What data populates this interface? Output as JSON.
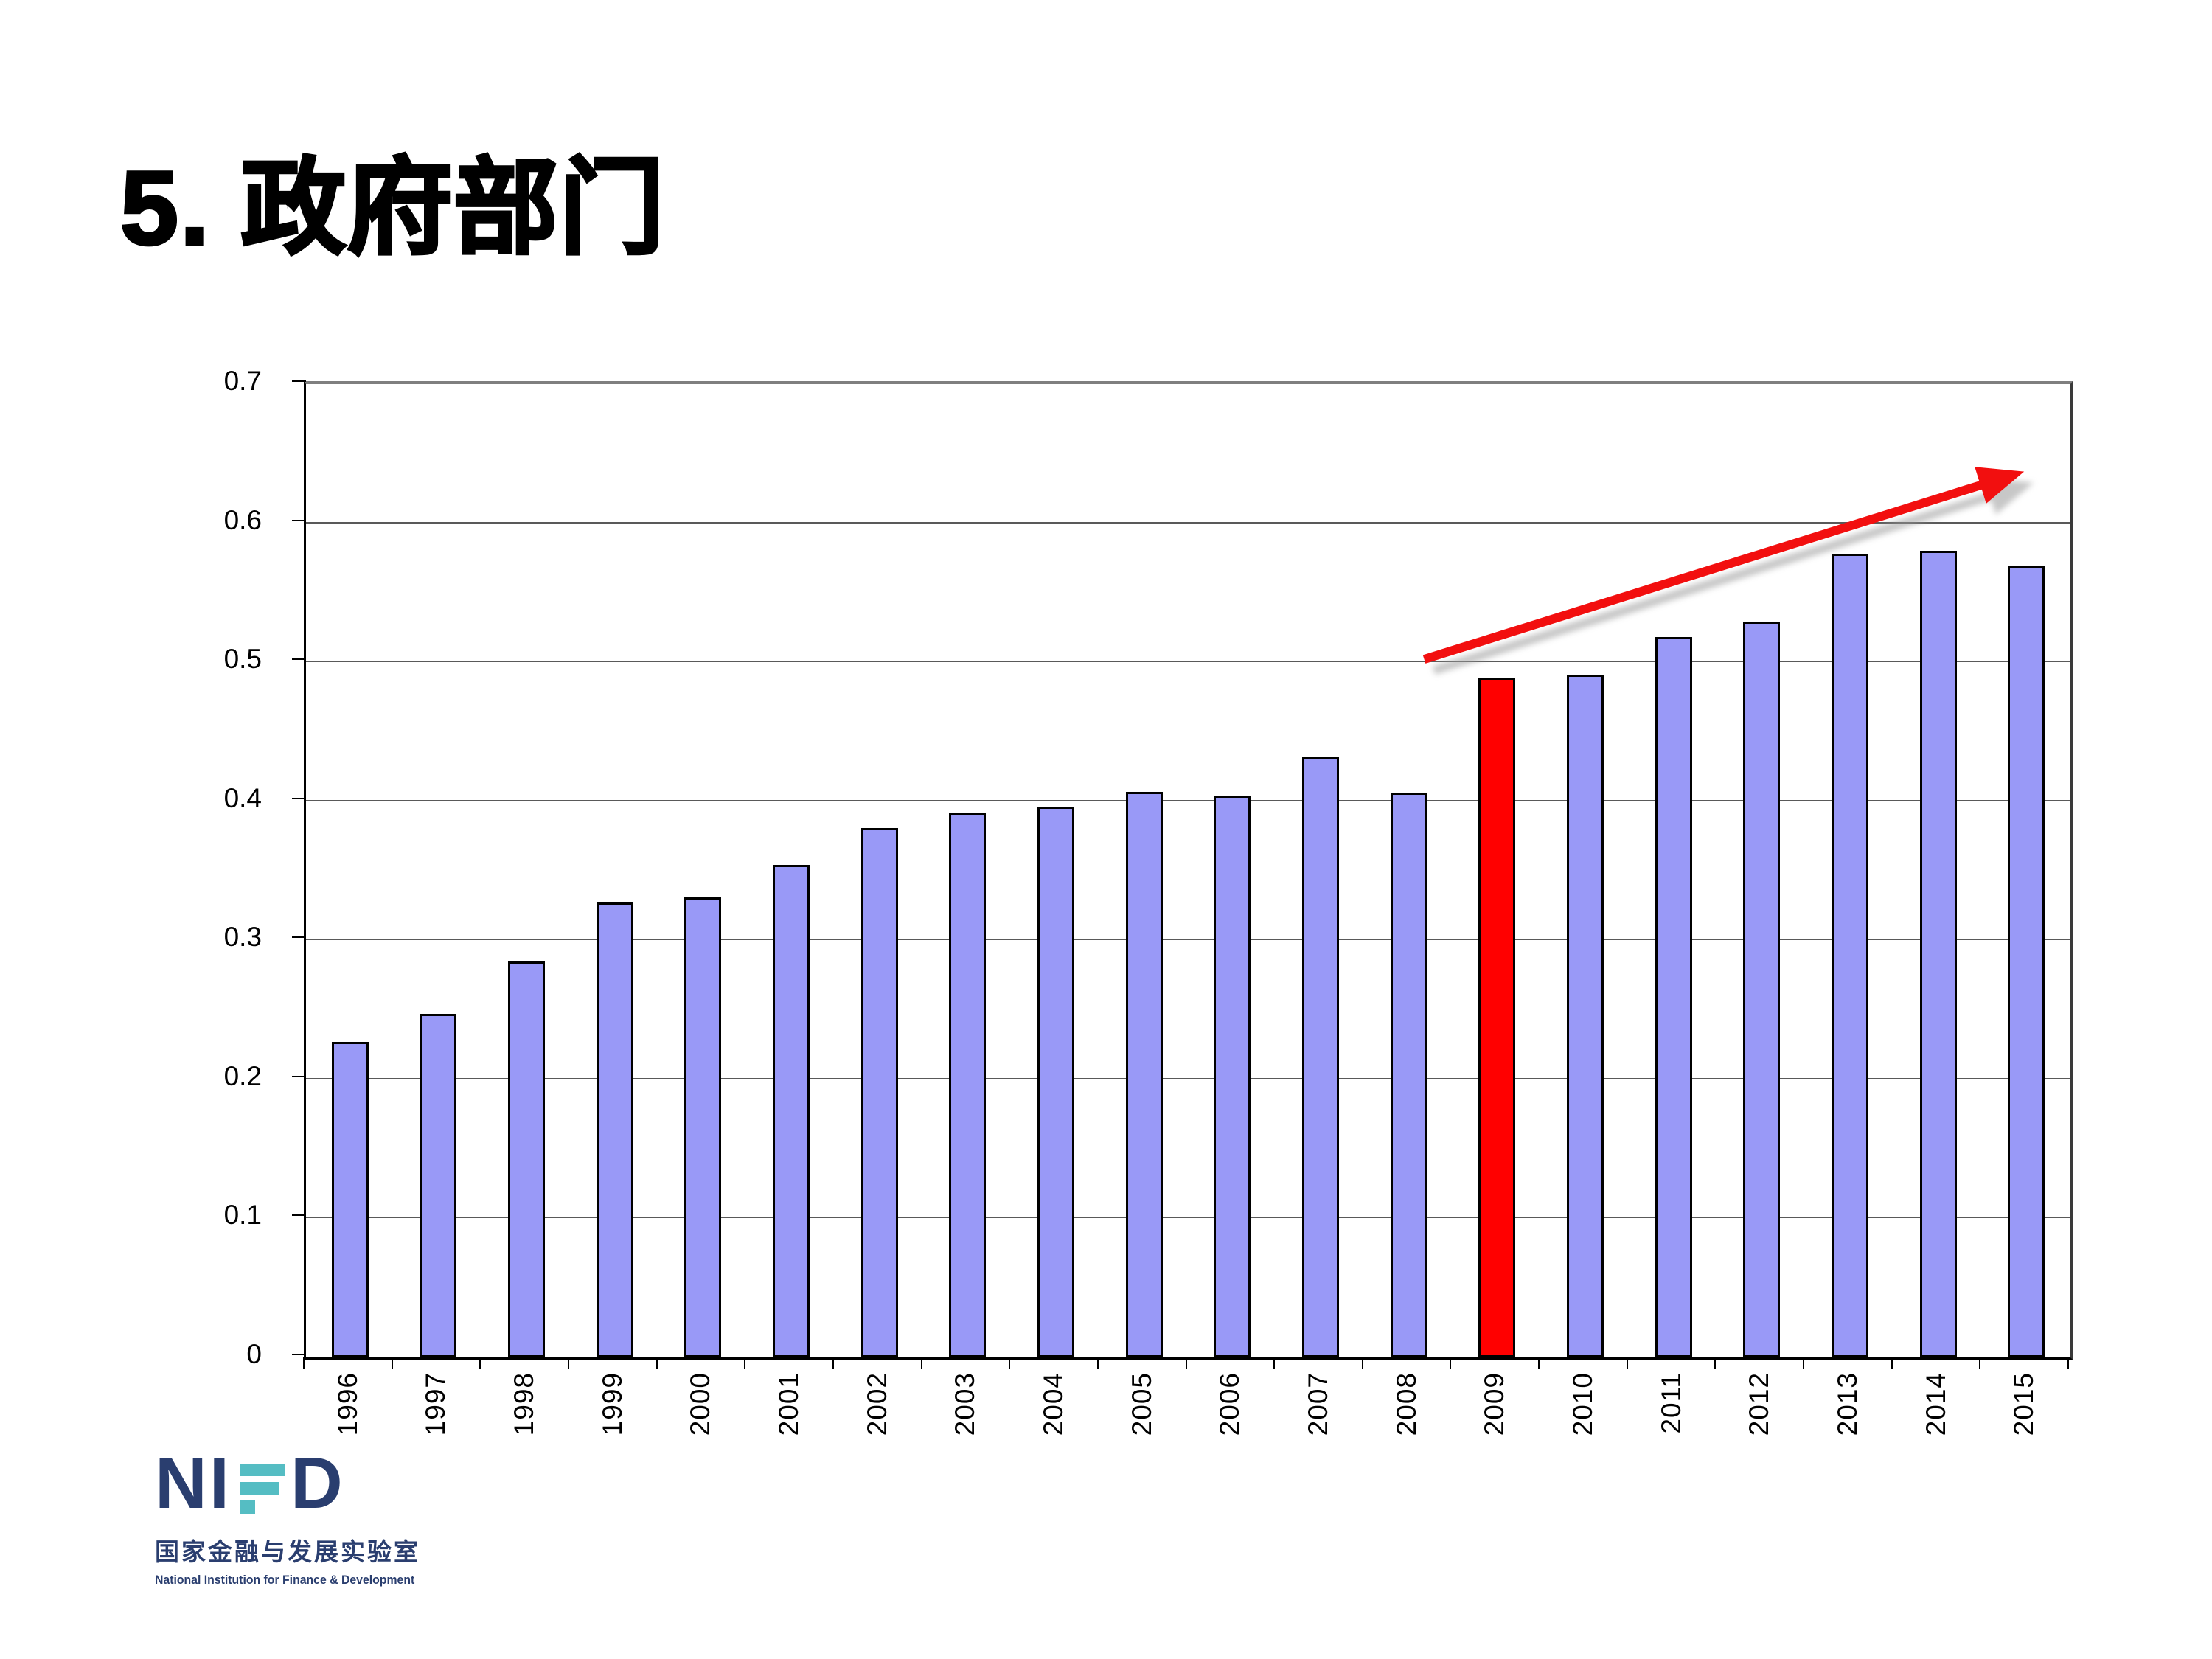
{
  "slide": {
    "title": "5. 政府部门"
  },
  "chart_data": {
    "type": "bar",
    "categories": [
      "1996",
      "1997",
      "1998",
      "1999",
      "2000",
      "2001",
      "2002",
      "2003",
      "2004",
      "2005",
      "2006",
      "2007",
      "2008",
      "2009",
      "2010",
      "2011",
      "2012",
      "2013",
      "2014",
      "2015"
    ],
    "values": [
      0.227,
      0.247,
      0.285,
      0.327,
      0.331,
      0.354,
      0.381,
      0.392,
      0.396,
      0.407,
      0.404,
      0.432,
      0.406,
      0.489,
      0.491,
      0.518,
      0.529,
      0.578,
      0.58,
      0.569
    ],
    "highlight_category": "2009",
    "highlight_color": "#FF0000",
    "bar_color": "#9999F7",
    "bar_border_color": "#000000",
    "title": "",
    "xlabel": "",
    "ylabel": "",
    "ylim": [
      0,
      0.7
    ],
    "ytick_labels": [
      "0",
      "0.1",
      "0.2",
      "0.3",
      "0.4",
      "0.5",
      "0.6",
      "0.7"
    ],
    "grid": true,
    "legend_position": "none",
    "annotation_arrow": {
      "color": "#F20F0F",
      "shadow_color": "#9a9a9a",
      "x_frac_start": 0.635,
      "y_value_start": 0.5,
      "x_frac_end": 0.975,
      "y_value_end": 0.635
    }
  },
  "logo": {
    "text_left": "NI",
    "text_right": "D",
    "stylized_letter": "F",
    "cn_name": "国家金融与发展实验室",
    "en_name": "National Institution for Finance & Development",
    "navy": "#2A3E6F",
    "teal": "#55BDC3"
  }
}
